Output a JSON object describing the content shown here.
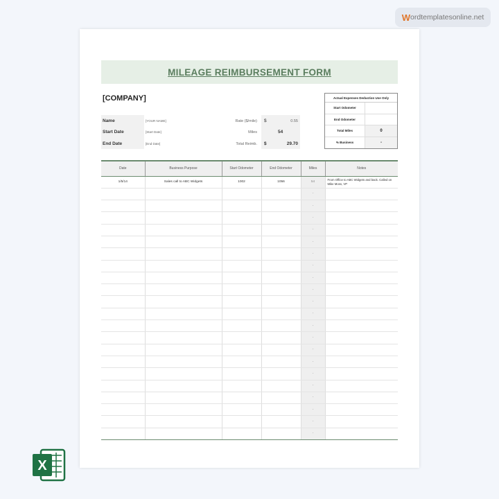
{
  "watermark": {
    "first_letter": "W",
    "rest": "ordtemplatesonline.net"
  },
  "form": {
    "title": "MILEAGE REIMBURSEMENT FORM",
    "company": "[COMPANY]",
    "name_label": "Name",
    "name_value": "[YOUR NAME]",
    "start_label": "Start Date",
    "start_value": "[Start Date]",
    "end_label": "End Date",
    "end_value": "[End Date]",
    "rate_label": "Rate ($/mile)",
    "rate_currency": "$",
    "rate_value": "0.55",
    "miles_label": "Miles",
    "miles_value": "54",
    "total_label": "Total Reimb.",
    "total_currency": "$",
    "total_value": "29.70"
  },
  "actual_expenses": {
    "header": "Actual Expenses Deduction Use Only",
    "rows": [
      {
        "label": "Start Odometer",
        "value": ""
      },
      {
        "label": "End Odometer",
        "value": ""
      },
      {
        "label": "Total Miles",
        "value": "0"
      },
      {
        "label": "% Business",
        "value": "-"
      }
    ]
  },
  "table": {
    "headers": [
      "Date",
      "Business Purpose",
      "Start Odometer",
      "End Odometer",
      "Miles",
      "Notes"
    ],
    "rows": [
      [
        "1/5/14",
        "Sales call to ABC Widgets",
        "1002",
        "1056",
        "54",
        "From Office to ABC Widgets and back. Called on Mike Moss, VP"
      ],
      [
        "",
        "",
        "",
        "",
        "-",
        ""
      ],
      [
        "",
        "",
        "",
        "",
        "-",
        ""
      ],
      [
        "",
        "",
        "",
        "",
        "-",
        ""
      ],
      [
        "",
        "",
        "",
        "",
        "-",
        ""
      ],
      [
        "",
        "",
        "",
        "",
        "-",
        ""
      ],
      [
        "",
        "",
        "",
        "",
        "-",
        ""
      ],
      [
        "",
        "",
        "",
        "",
        "-",
        ""
      ],
      [
        "",
        "",
        "",
        "",
        "-",
        ""
      ],
      [
        "",
        "",
        "",
        "",
        "-",
        ""
      ],
      [
        "",
        "",
        "",
        "",
        "-",
        ""
      ],
      [
        "",
        "",
        "",
        "",
        "-",
        ""
      ],
      [
        "",
        "",
        "",
        "",
        "-",
        ""
      ],
      [
        "",
        "",
        "",
        "",
        "-",
        ""
      ],
      [
        "",
        "",
        "",
        "",
        "-",
        ""
      ],
      [
        "",
        "",
        "",
        "",
        "-",
        ""
      ],
      [
        "",
        "",
        "",
        "",
        "-",
        ""
      ],
      [
        "",
        "",
        "",
        "",
        "-",
        ""
      ],
      [
        "",
        "",
        "",
        "",
        "-",
        ""
      ],
      [
        "",
        "",
        "",
        "",
        "-",
        ""
      ],
      [
        "",
        "",
        "",
        "",
        "-",
        ""
      ],
      [
        "",
        "",
        "",
        "",
        "-",
        ""
      ]
    ]
  },
  "colors": {
    "accent": "#5a7d5e",
    "title_band": "#e6efe6",
    "excel_green": "#1f7244"
  }
}
